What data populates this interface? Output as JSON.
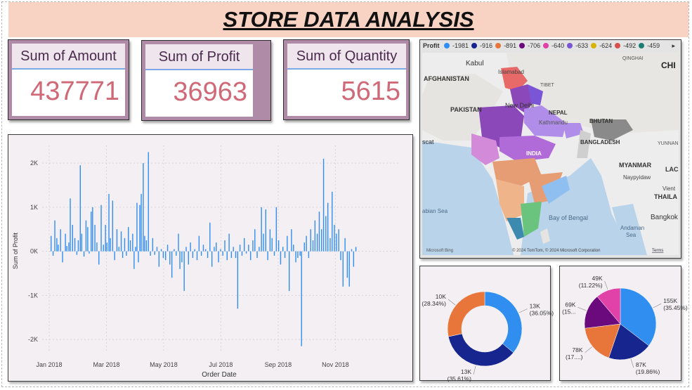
{
  "title": "STORE DATA ANALYSIS",
  "cards": [
    {
      "label": "Sum of Amount",
      "value": "437771"
    },
    {
      "label": "Sum of Profit",
      "value": "36963"
    },
    {
      "label": "Sum of Quantity",
      "value": "5615"
    }
  ],
  "map": {
    "legend_title": "Profit",
    "legend": [
      {
        "label": "-1981",
        "color": "#2f8ef0"
      },
      {
        "label": "-916",
        "color": "#17258f"
      },
      {
        "label": "-891",
        "color": "#e8753a"
      },
      {
        "label": "-706",
        "color": "#6b0a7c"
      },
      {
        "label": "-640",
        "color": "#e042a8"
      },
      {
        "label": "-633",
        "color": "#7a56d6"
      },
      {
        "label": "-624",
        "color": "#d8b400"
      },
      {
        "label": "-492",
        "color": "#d8504b"
      },
      {
        "label": "-459",
        "color": "#1d7e72"
      }
    ],
    "labels": {
      "kabul": "Kabul",
      "islamabad": "Islamabad",
      "afghanistan": "AFGHANISTAN",
      "tibet": "TIBET",
      "qinghai": "QINGHAI",
      "chi": "CHI",
      "pakistan": "PAKISTAN",
      "new_delhi": "New Delhi",
      "nepal": "NEPAL",
      "kathmandu": "Kathmandu",
      "bhutan": "BHUTAN",
      "muscat": "scat",
      "india": "INDIA",
      "bangladesh": "BANGLADESH",
      "yunnan": "YUNNAN",
      "myanmar": "MYANMAR",
      "lao": "LAC",
      "naypyidaw": "Naypyidaw",
      "vient": "Vient",
      "thaila": "THAILA",
      "arabian_sea": "abian Sea",
      "bay_of_bengal": "Bay of Bengal",
      "bangkok": "Bangkok",
      "andaman_sea": "Andaman\nSea",
      "attribution_left": "Microsoft Bing",
      "attribution_right": "© 2024 TomTom, © 2024 Microsoft Corporation",
      "terms": "Terms"
    }
  },
  "chart_data": [
    {
      "type": "bar",
      "xlabel": "Order Date",
      "ylabel": "Sum of Profit",
      "ylim": [
        -2300,
        2400
      ],
      "yticks": [
        {
          "v": 2000,
          "label": "2K"
        },
        {
          "v": 1000,
          "label": "1K"
        },
        {
          "v": 0,
          "label": "0K"
        },
        {
          "v": -1000,
          "label": "-1K"
        },
        {
          "v": -2000,
          "label": "-2K"
        }
      ],
      "xticks": [
        {
          "month": 0,
          "label": "Jan 2018"
        },
        {
          "month": 2,
          "label": "Mar 2018"
        },
        {
          "month": 4,
          "label": "May 2018"
        },
        {
          "month": 6,
          "label": "Jul 2018"
        },
        {
          "month": 8,
          "label": "Sep 2018"
        },
        {
          "month": 10,
          "label": "Nov 2018"
        }
      ],
      "color": "#2f8ef0",
      "grid": true,
      "points": [
        [
          0.05,
          350
        ],
        [
          0.12,
          -100
        ],
        [
          0.18,
          700
        ],
        [
          0.25,
          300
        ],
        [
          0.3,
          150
        ],
        [
          0.38,
          500
        ],
        [
          0.45,
          -250
        ],
        [
          0.55,
          400
        ],
        [
          0.6,
          120
        ],
        [
          0.67,
          200
        ],
        [
          0.72,
          1200
        ],
        [
          0.8,
          600
        ],
        [
          0.88,
          300
        ],
        [
          0.95,
          -80
        ],
        [
          1.0,
          250
        ],
        [
          1.07,
          1950
        ],
        [
          1.12,
          400
        ],
        [
          1.2,
          -120
        ],
        [
          1.27,
          700
        ],
        [
          1.33,
          550
        ],
        [
          1.38,
          -50
        ],
        [
          1.45,
          900
        ],
        [
          1.5,
          1000
        ],
        [
          1.58,
          600
        ],
        [
          1.65,
          200
        ],
        [
          1.72,
          -300
        ],
        [
          1.8,
          1050
        ],
        [
          1.88,
          150
        ],
        [
          1.95,
          600
        ],
        [
          2.0,
          200
        ],
        [
          2.07,
          1300
        ],
        [
          2.12,
          300
        ],
        [
          2.2,
          1150
        ],
        [
          2.27,
          -200
        ],
        [
          2.35,
          500
        ],
        [
          2.42,
          100
        ],
        [
          2.5,
          450
        ],
        [
          2.55,
          -150
        ],
        [
          2.62,
          300
        ],
        [
          2.68,
          -100
        ],
        [
          2.75,
          550
        ],
        [
          2.82,
          250
        ],
        [
          2.9,
          400
        ],
        [
          2.95,
          -400
        ],
        [
          3.0,
          100
        ],
        [
          3.05,
          1100
        ],
        [
          3.1,
          -250
        ],
        [
          3.15,
          1050
        ],
        [
          3.2,
          1300
        ],
        [
          3.27,
          2000
        ],
        [
          3.32,
          350
        ],
        [
          3.38,
          250
        ],
        [
          3.45,
          2250
        ],
        [
          3.52,
          -100
        ],
        [
          3.6,
          300
        ],
        [
          3.67,
          -80
        ],
        [
          3.75,
          100
        ],
        [
          3.82,
          -350
        ],
        [
          3.9,
          50
        ],
        [
          3.97,
          -150
        ],
        [
          4.05,
          -200
        ],
        [
          4.12,
          150
        ],
        [
          4.2,
          -300
        ],
        [
          4.27,
          -600
        ],
        [
          4.35,
          50
        ],
        [
          4.42,
          -100
        ],
        [
          4.5,
          400
        ],
        [
          4.55,
          -400
        ],
        [
          4.62,
          -250
        ],
        [
          4.7,
          -900
        ],
        [
          4.77,
          100
        ],
        [
          4.85,
          -300
        ],
        [
          4.92,
          200
        ],
        [
          5.0,
          -150
        ],
        [
          5.07,
          50
        ],
        [
          5.15,
          -200
        ],
        [
          5.22,
          350
        ],
        [
          5.3,
          -100
        ],
        [
          5.37,
          150
        ],
        [
          5.45,
          50
        ],
        [
          5.52,
          -150
        ],
        [
          5.6,
          650
        ],
        [
          5.67,
          -350
        ],
        [
          5.75,
          100
        ],
        [
          5.82,
          200
        ],
        [
          5.9,
          -250
        ],
        [
          5.97,
          50
        ],
        [
          6.05,
          -100
        ],
        [
          6.12,
          250
        ],
        [
          6.2,
          -200
        ],
        [
          6.27,
          400
        ],
        [
          6.35,
          -150
        ],
        [
          6.42,
          100
        ],
        [
          6.5,
          -150
        ],
        [
          6.57,
          -1300
        ],
        [
          6.65,
          150
        ],
        [
          6.72,
          -100
        ],
        [
          6.8,
          300
        ],
        [
          6.87,
          -50
        ],
        [
          6.95,
          150
        ],
        [
          7.02,
          -200
        ],
        [
          7.1,
          250
        ],
        [
          7.17,
          500
        ],
        [
          7.25,
          -150
        ],
        [
          7.32,
          100
        ],
        [
          7.4,
          1000
        ],
        [
          7.47,
          400
        ],
        [
          7.55,
          950
        ],
        [
          7.62,
          -200
        ],
        [
          7.7,
          500
        ],
        [
          7.77,
          300
        ],
        [
          7.85,
          -100
        ],
        [
          7.92,
          1000
        ],
        [
          8.0,
          250
        ],
        [
          8.07,
          -300
        ],
        [
          8.15,
          100
        ],
        [
          8.22,
          -150
        ],
        [
          8.3,
          350
        ],
        [
          8.37,
          -900
        ],
        [
          8.45,
          500
        ],
        [
          8.52,
          150
        ],
        [
          8.6,
          -250
        ],
        [
          8.67,
          -150
        ],
        [
          8.75,
          -100
        ],
        [
          8.8,
          -2150
        ],
        [
          8.9,
          200
        ],
        [
          8.97,
          350
        ],
        [
          9.05,
          -150
        ],
        [
          9.12,
          500
        ],
        [
          9.2,
          250
        ],
        [
          9.27,
          700
        ],
        [
          9.35,
          400
        ],
        [
          9.42,
          900
        ],
        [
          9.5,
          500
        ],
        [
          9.57,
          2100
        ],
        [
          9.65,
          800
        ],
        [
          9.72,
          1100
        ],
        [
          9.8,
          300
        ],
        [
          9.87,
          1350
        ],
        [
          9.95,
          600
        ],
        [
          10.02,
          400
        ],
        [
          10.1,
          500
        ],
        [
          10.17,
          -200
        ],
        [
          10.25,
          -800
        ],
        [
          10.32,
          300
        ],
        [
          10.4,
          -600
        ],
        [
          10.47,
          -800
        ],
        [
          10.55,
          50
        ],
        [
          10.62,
          -350
        ],
        [
          10.7,
          100
        ]
      ]
    },
    {
      "type": "pie",
      "donut": true,
      "slices": [
        {
          "value": 13,
          "label": "13K",
          "pct": "(36.05%)",
          "color": "#2f8ef0"
        },
        {
          "value": 12.86,
          "label": "13K",
          "pct": "(35.61%)",
          "color": "#17258f"
        },
        {
          "value": 10.23,
          "label": "10K",
          "pct": "(28.34%)",
          "color": "#e8753a"
        }
      ]
    },
    {
      "type": "pie",
      "slices": [
        {
          "value": 155,
          "label": "155K",
          "pct": "(35.45%)",
          "color": "#2f8ef0"
        },
        {
          "value": 87,
          "label": "87K",
          "pct": "(19.86%)",
          "color": "#17258f"
        },
        {
          "value": 78,
          "label": "78K",
          "pct": "(17....)",
          "color": "#e8753a"
        },
        {
          "value": 69,
          "label": "69K",
          "pct": "(15...",
          "color": "#6b0a7c"
        },
        {
          "value": 49,
          "label": "49K",
          "pct": "(11.22%)",
          "color": "#e042a8"
        }
      ]
    }
  ]
}
